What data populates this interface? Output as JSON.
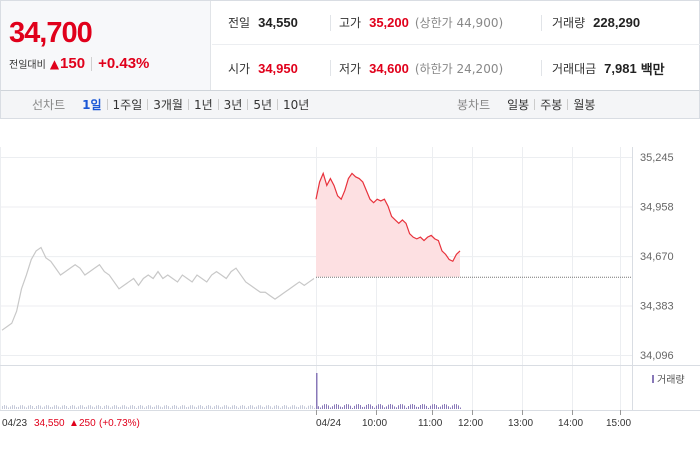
{
  "quote": {
    "price": "34,700",
    "change_label": "전일대비",
    "change_arrow": "▲",
    "change_value": "150",
    "change_pct": "+0.43%"
  },
  "stats": {
    "prev_close_label": "전일",
    "prev_close": "34,550",
    "high_label": "고가",
    "high": "35,200",
    "upper_limit": "(상한가 44,900)",
    "volume_label": "거래량",
    "volume": "228,290",
    "open_label": "시가",
    "open": "34,950",
    "low_label": "저가",
    "low": "34,600",
    "lower_limit": "(하한가 24,200)",
    "amount_label": "거래대금",
    "amount": "7,981",
    "amount_unit": "백만"
  },
  "toolbar": {
    "line_label": "선차트",
    "line_periods": [
      "1일",
      "1주일",
      "3개월",
      "1년",
      "3년",
      "5년",
      "10년"
    ],
    "active_period": "1일",
    "candle_label": "봉차트",
    "candle_periods": [
      "일봉",
      "주봉",
      "월봉"
    ]
  },
  "colors": {
    "up": "#e0001b",
    "prev_day_line": "#c8c8c8",
    "today_line": "#e8323c",
    "today_fill": "#fde0e2",
    "volume_prev": "#c4c8d8",
    "volume_today": "#8878b8",
    "active_tab": "#1a57d6"
  },
  "chart_data": {
    "type": "line",
    "y_ticks": [
      "35,245",
      "34,958",
      "34,670",
      "34,383",
      "34,096"
    ],
    "y_tick_values": [
      35245,
      34958,
      34670,
      34383,
      34096
    ],
    "ylim": [
      34096,
      35245
    ],
    "x_ticks": [
      "04/24",
      "10:00",
      "11:00",
      "12:00",
      "13:00",
      "14:00",
      "15:00"
    ],
    "prev_close": 34550,
    "volume_legend": "거래량",
    "footer": {
      "date": "04/23",
      "close": "34,550",
      "arrow": "▲",
      "change": "250",
      "pct": "(+0.73%)"
    },
    "series": [
      {
        "values": [
          34240,
          34260,
          34280,
          34350,
          34480,
          34560,
          34650,
          34700,
          34720,
          34660,
          34640,
          34600,
          34560,
          34580,
          34600,
          34620,
          34600,
          34560,
          34580,
          34600,
          34620,
          34580,
          34560,
          34520,
          34480,
          34500,
          34520,
          34540,
          34500,
          34540,
          34560,
          34540,
          34580,
          34540,
          34560,
          34540,
          34520,
          34560,
          34540,
          34520,
          34560,
          34540,
          34520,
          34560,
          34580,
          34560,
          34540,
          34580,
          34600,
          34560,
          34520,
          34500,
          34480,
          34460,
          34460,
          34440,
          34420,
          34440,
          34460,
          34480,
          34500,
          34520,
          34500,
          34520,
          34540
        ]
      },
      {
        "values": [
          35000,
          35100,
          35150,
          35080,
          35120,
          35080,
          35020,
          35000,
          35050,
          35120,
          35150,
          35130,
          35120,
          35100,
          35050,
          35000,
          34980,
          35000,
          34990,
          35000,
          34960,
          34900,
          34880,
          34860,
          34880,
          34860,
          34800,
          34780,
          34770,
          34780,
          34760,
          34780,
          34790,
          34770,
          34760,
          34700,
          34680,
          34650,
          34640,
          34680,
          34700
        ]
      }
    ]
  }
}
